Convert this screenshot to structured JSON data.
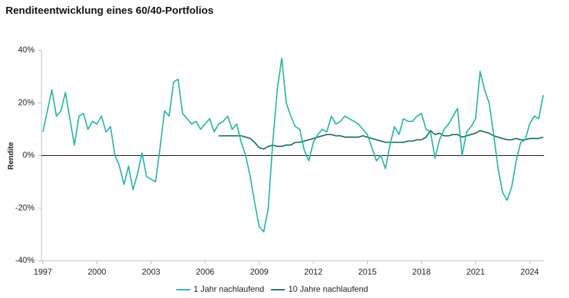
{
  "chart_data": {
    "type": "line",
    "title": "Renditeentwicklung eines 60/40-Portfolios",
    "y_label": "Rendite",
    "x": [
      1997,
      1997.25,
      1997.5,
      1997.75,
      1998,
      1998.25,
      1998.5,
      1998.75,
      1999,
      1999.25,
      1999.5,
      1999.75,
      2000,
      2000.25,
      2000.5,
      2000.75,
      2001,
      2001.25,
      2001.5,
      2001.75,
      2002,
      2002.25,
      2002.5,
      2002.75,
      2003,
      2003.25,
      2003.5,
      2003.75,
      2004,
      2004.25,
      2004.5,
      2004.75,
      2005,
      2005.25,
      2005.5,
      2005.75,
      2006,
      2006.25,
      2006.5,
      2006.75,
      2007,
      2007.25,
      2007.5,
      2007.75,
      2008,
      2008.25,
      2008.5,
      2008.75,
      2009,
      2009.25,
      2009.5,
      2009.75,
      2010,
      2010.25,
      2010.5,
      2010.75,
      2011,
      2011.25,
      2011.5,
      2011.75,
      2012,
      2012.25,
      2012.5,
      2012.75,
      2013,
      2013.25,
      2013.5,
      2013.75,
      2014,
      2014.25,
      2014.5,
      2014.75,
      2015,
      2015.25,
      2015.5,
      2015.75,
      2016,
      2016.25,
      2016.5,
      2016.75,
      2017,
      2017.25,
      2017.5,
      2017.75,
      2018,
      2018.25,
      2018.5,
      2018.75,
      2019,
      2019.25,
      2019.5,
      2019.75,
      2020,
      2020.25,
      2020.5,
      2020.75,
      2021,
      2021.25,
      2021.5,
      2021.75,
      2022,
      2022.25,
      2022.5,
      2022.75,
      2023,
      2023.25,
      2023.5,
      2023.75,
      2024,
      2024.25,
      2024.5,
      2024.75
    ],
    "series": [
      {
        "name": "1 Jahr nachlaufend",
        "color": "#2bb3a3",
        "values": [
          9,
          17,
          25,
          15,
          17,
          24,
          14,
          4,
          15,
          16,
          10,
          13,
          12,
          15,
          9,
          11,
          0,
          -4,
          -11,
          -4,
          -13,
          -7,
          1,
          -8,
          -9,
          -10,
          3,
          17,
          15,
          28,
          29,
          16,
          14,
          12,
          13,
          10,
          12,
          14,
          9,
          12,
          13,
          15,
          10,
          12,
          5,
          0,
          -8,
          -18,
          -27,
          -29,
          -20,
          5,
          25,
          37,
          20,
          15,
          11,
          10,
          2,
          -2,
          5,
          8,
          10,
          9,
          15,
          12,
          13,
          15,
          14,
          13,
          12,
          10,
          8,
          3,
          -2,
          0,
          -5,
          4,
          11,
          8,
          14,
          13,
          13,
          15,
          16,
          10,
          9,
          -1,
          6,
          10,
          12,
          15,
          18,
          0,
          9,
          11,
          14,
          32,
          25,
          20,
          8,
          -5,
          -14,
          -17,
          -12,
          -2,
          5,
          6,
          12,
          15,
          14,
          23
        ]
      },
      {
        "name": "10 Jahre nachlaufend",
        "color": "#1b6b60",
        "values": [
          null,
          null,
          null,
          null,
          null,
          null,
          null,
          null,
          null,
          null,
          null,
          null,
          null,
          null,
          null,
          null,
          null,
          null,
          null,
          null,
          null,
          null,
          null,
          null,
          null,
          null,
          null,
          null,
          null,
          null,
          null,
          null,
          null,
          null,
          null,
          null,
          null,
          null,
          null,
          7.5,
          7.5,
          7.5,
          7.5,
          7.5,
          7.5,
          7,
          6.5,
          5,
          3,
          2.5,
          3.5,
          4,
          3.5,
          3.5,
          4,
          4,
          5,
          5,
          5.5,
          6,
          6.5,
          7,
          7.5,
          8,
          8,
          7.5,
          7.5,
          7,
          7,
          7,
          7,
          7.5,
          7,
          6.5,
          6,
          5.5,
          5,
          5,
          5,
          5,
          5,
          5.5,
          5.5,
          6,
          6,
          7,
          9.5,
          8,
          8.5,
          7.5,
          7.5,
          8,
          8,
          7,
          7.5,
          8,
          8.5,
          9.5,
          9,
          8.5,
          7.5,
          7,
          6.5,
          6,
          6,
          6.5,
          6,
          6,
          6.5,
          6.5,
          6.5,
          7
        ]
      }
    ],
    "xlim": [
      1997,
      2024.8
    ],
    "xticks": [
      1997,
      2000,
      2003,
      2006,
      2009,
      2012,
      2015,
      2018,
      2021,
      2024
    ],
    "ylim": [
      -40,
      40
    ],
    "yticks": [
      {
        "value": -40,
        "label": "-40%"
      },
      {
        "value": -20,
        "label": "-20%"
      },
      {
        "value": 0,
        "label": "0%"
      },
      {
        "value": 20,
        "label": "20%"
      },
      {
        "value": 40,
        "label": "40%"
      }
    ],
    "grid": false,
    "legend": "bottom"
  }
}
